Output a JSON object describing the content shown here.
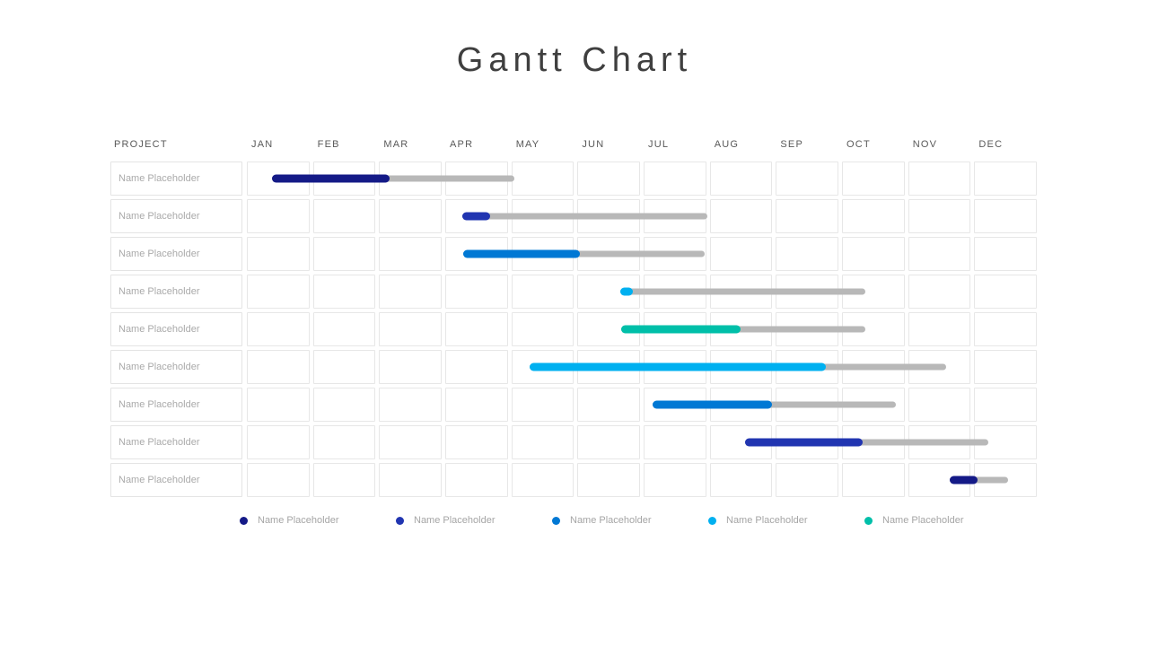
{
  "slide": {
    "title": "Gantt Chart"
  },
  "table": {
    "project_header": "PROJECT",
    "months": [
      "JAN",
      "FEB",
      "MAR",
      "APR",
      "MAY",
      "JUN",
      "JUL",
      "AUG",
      "SEP",
      "OCT",
      "NOV",
      "DEC"
    ]
  },
  "colors": {
    "navy": "#141a87",
    "royal": "#2135b1",
    "blue": "#0078d4",
    "cyan": "#00b0f0",
    "teal": "#00bfa9",
    "track": "#b8b8b8",
    "grid_border": "#e7e7e7",
    "header_text": "#595959",
    "muted_text": "#aaaaaa",
    "title_text": "#3f3f3f"
  },
  "chart_data": {
    "type": "bar",
    "variant": "gantt",
    "title": "Gantt Chart",
    "x_axis": {
      "unit": "months",
      "labels": [
        "JAN",
        "FEB",
        "MAR",
        "APR",
        "MAY",
        "JUN",
        "JUL",
        "AUG",
        "SEP",
        "OCT",
        "NOV",
        "DEC"
      ],
      "range": [
        0,
        12
      ]
    },
    "note": "start / progress_end / end are in month units from Jan 1; progress bar is colored, remainder is gray track",
    "rows": [
      {
        "label": "Name Placeholder",
        "color": "navy",
        "start": 0.38,
        "progress_end": 2.17,
        "end": 4.07
      },
      {
        "label": "Name Placeholder",
        "color": "royal",
        "start": 3.27,
        "progress_end": 3.7,
        "end": 6.99
      },
      {
        "label": "Name Placeholder",
        "color": "blue",
        "start": 3.28,
        "progress_end": 5.06,
        "end": 6.96
      },
      {
        "label": "Name Placeholder",
        "color": "cyan",
        "start": 5.67,
        "progress_end": 5.87,
        "end": 9.39
      },
      {
        "label": "Name Placeholder",
        "color": "teal",
        "start": 5.68,
        "progress_end": 7.5,
        "end": 9.39
      },
      {
        "label": "Name Placeholder",
        "color": "cyan",
        "start": 4.3,
        "progress_end": 8.79,
        "end": 10.62
      },
      {
        "label": "Name Placeholder",
        "color": "blue",
        "start": 6.17,
        "progress_end": 7.98,
        "end": 9.86
      },
      {
        "label": "Name Placeholder",
        "color": "royal",
        "start": 7.57,
        "progress_end": 9.36,
        "end": 11.26
      },
      {
        "label": "Name Placeholder",
        "color": "navy",
        "start": 10.68,
        "progress_end": 11.1,
        "end": 11.56
      }
    ],
    "legend": [
      {
        "label": "Name Placeholder",
        "color": "navy"
      },
      {
        "label": "Name Placeholder",
        "color": "royal"
      },
      {
        "label": "Name Placeholder",
        "color": "blue"
      },
      {
        "label": "Name Placeholder",
        "color": "cyan"
      },
      {
        "label": "Name Placeholder",
        "color": "teal"
      }
    ],
    "legend_position": "bottom"
  }
}
